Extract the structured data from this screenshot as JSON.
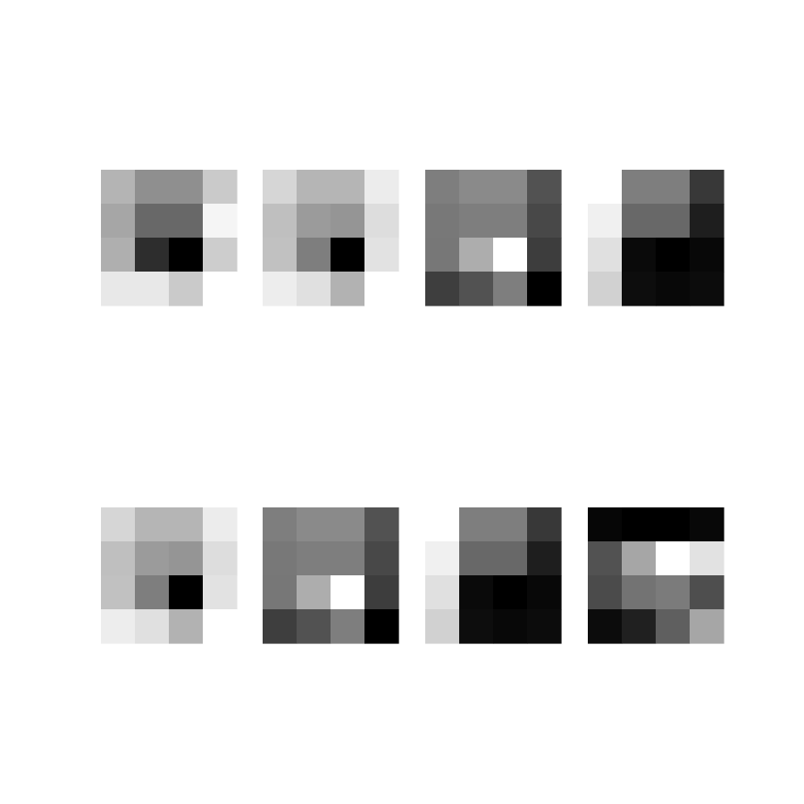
{
  "chart_data": {
    "type": "heatmap",
    "colormap": "grayscale",
    "layout": {
      "rows": 2,
      "cols": 4
    },
    "panels": [
      [
        [
          180,
          143,
          143,
          202
        ],
        [
          166,
          104,
          104,
          245
        ],
        [
          175,
          45,
          0,
          205
        ],
        [
          232,
          232,
          202,
          255
        ]
      ],
      [
        [
          214,
          181,
          181,
          236
        ],
        [
          191,
          155,
          149,
          221
        ],
        [
          193,
          126,
          0,
          226
        ],
        [
          237,
          224,
          178,
          255
        ]
      ],
      [
        [
          126,
          138,
          138,
          82
        ],
        [
          120,
          126,
          126,
          72
        ],
        [
          119,
          173,
          255,
          61
        ],
        [
          62,
          82,
          126,
          0
        ]
      ],
      [
        [
          255,
          126,
          126,
          56
        ],
        [
          240,
          104,
          104,
          30
        ],
        [
          224,
          10,
          0,
          8
        ],
        [
          209,
          13,
          8,
          12
        ]
      ],
      [
        [
          214,
          181,
          181,
          236
        ],
        [
          191,
          155,
          149,
          221
        ],
        [
          193,
          126,
          0,
          226
        ],
        [
          237,
          224,
          178,
          255
        ]
      ],
      [
        [
          126,
          138,
          138,
          82
        ],
        [
          120,
          126,
          126,
          72
        ],
        [
          119,
          173,
          255,
          61
        ],
        [
          62,
          82,
          126,
          0
        ]
      ],
      [
        [
          255,
          126,
          126,
          56
        ],
        [
          240,
          104,
          104,
          30
        ],
        [
          224,
          10,
          0,
          8
        ],
        [
          209,
          13,
          8,
          12
        ]
      ],
      [
        [
          6,
          0,
          0,
          8
        ],
        [
          82,
          166,
          255,
          226
        ],
        [
          75,
          115,
          123,
          78
        ],
        [
          12,
          32,
          95,
          166
        ]
      ]
    ]
  }
}
